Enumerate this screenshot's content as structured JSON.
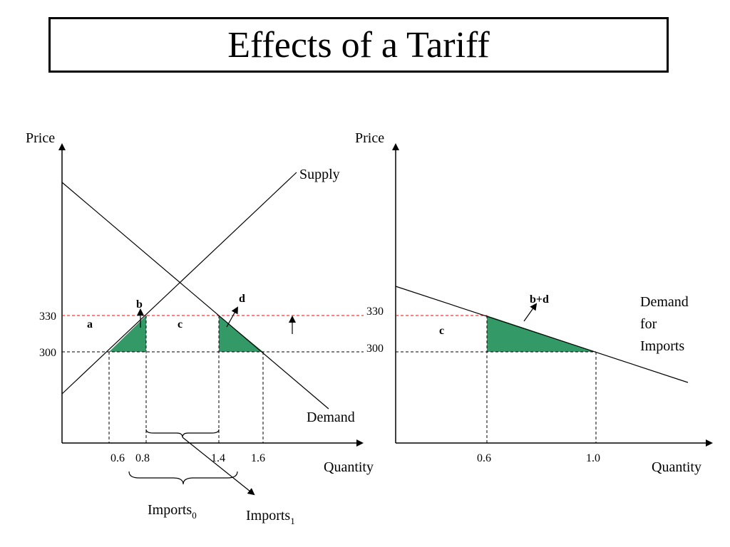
{
  "title": "Effects of a Tariff",
  "colors": {
    "shade": "#339966",
    "tariff_line": "#ff0000",
    "ink": "#000000"
  },
  "left_panel": {
    "y_axis_label": "Price",
    "x_axis_label": "Quantity",
    "supply_label": "Supply",
    "demand_label": "Demand",
    "price_ticks": [
      "330",
      "300"
    ],
    "quantity_ticks": [
      "0.6",
      "0.8",
      "1.4",
      "1.6"
    ],
    "region_labels": {
      "a": "a",
      "b": "b",
      "c": "c",
      "d": "d"
    },
    "imports0": {
      "text": "Imports",
      "sub": "0"
    },
    "imports1": {
      "text": "Imports",
      "sub": "1"
    }
  },
  "right_panel": {
    "y_axis_label": "Price",
    "x_axis_label": "Quantity",
    "demand_label_lines": [
      "Demand",
      "for",
      "Imports"
    ],
    "price_ticks": [
      "330",
      "300"
    ],
    "quantity_ticks": [
      "0.6",
      "1.0"
    ],
    "region_labels": {
      "c": "c",
      "bd": "b+d"
    }
  }
}
